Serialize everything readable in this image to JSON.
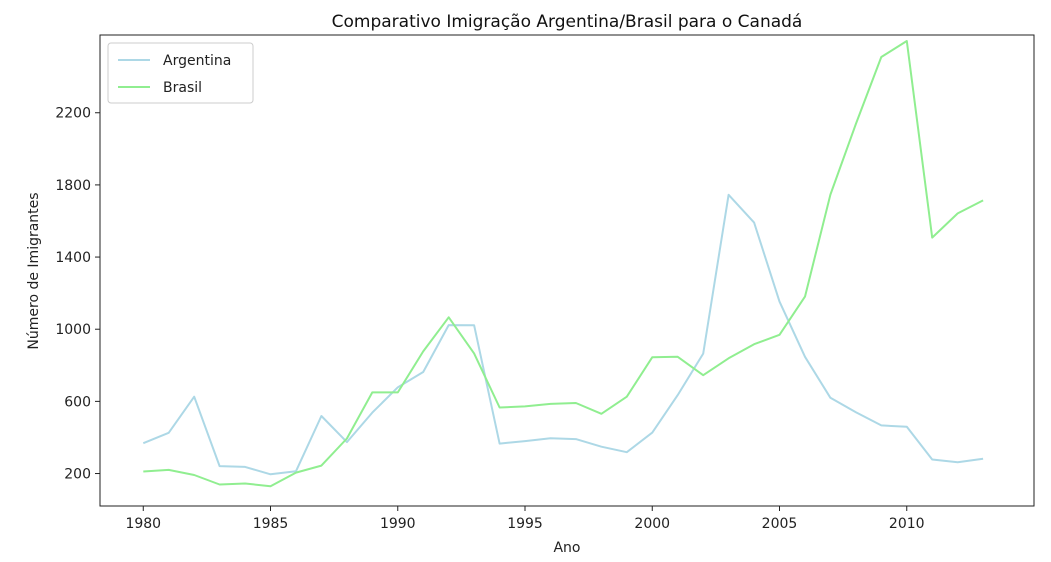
{
  "chart_data": {
    "type": "line",
    "title": "Comparativo Imigração Argentina/Brasil para o Canadá",
    "xlabel": "Ano",
    "ylabel": "Número de Imigrantes",
    "xlim": [
      1978.3,
      2015.0
    ],
    "ylim": [
      20,
      2631
    ],
    "x_ticks": [
      "1980",
      "1985",
      "1990",
      "1995",
      "2000",
      "2005",
      "2010"
    ],
    "y_ticks": [
      "200",
      "600",
      "1000",
      "1400",
      "1800",
      "2200"
    ],
    "grid": false,
    "legend_position": "upper-left",
    "x": [
      1980,
      1981,
      1982,
      1983,
      1984,
      1985,
      1986,
      1987,
      1988,
      1989,
      1990,
      1991,
      1992,
      1993,
      1994,
      1995,
      1996,
      1997,
      1998,
      1999,
      2000,
      2001,
      2002,
      2003,
      2004,
      2005,
      2006,
      2007,
      2008,
      2009,
      2010,
      2011,
      2012,
      2013
    ],
    "series": [
      {
        "name": "Argentina",
        "color": "#add8e6",
        "values": [
          368,
          426,
          626,
          241,
          237,
          196,
          213,
          519,
          374,
          538,
          678,
          763,
          1023,
          1022,
          366,
          380,
          396,
          391,
          349,
          318,
          427,
          635,
          865,
          1745,
          1591,
          1153,
          847,
          620,
          540,
          467,
          459,
          278,
          263,
          282
        ]
      },
      {
        "name": "Brasil",
        "color": "#90ee90",
        "values": [
          211,
          220,
          192,
          139,
          145,
          130,
          205,
          244,
          394,
          650,
          650,
          877,
          1066,
          866,
          566,
          572,
          586,
          591,
          531,
          626,
          845,
          847,
          745,
          839,
          917,
          969,
          1181,
          1746,
          2138,
          2509,
          2598,
          1508,
          1642,
          1714
        ]
      }
    ]
  }
}
